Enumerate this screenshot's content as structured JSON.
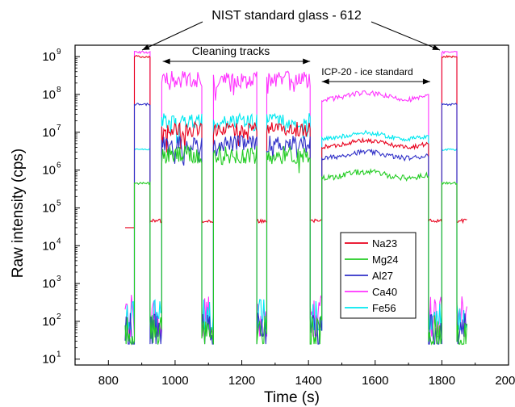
{
  "chart_data": {
    "type": "line",
    "xlabel": "Time (s)",
    "ylabel": "Raw intensity (cps)",
    "xlim": [
      700,
      2000
    ],
    "ylim": [
      7,
      2000000000
    ],
    "yscale": "log",
    "x_ticks": [
      800,
      1000,
      1200,
      1400,
      1600,
      1800,
      2000
    ],
    "x_tick_labels": [
      "800",
      "1000",
      "1200",
      "1400",
      "1600",
      "1800",
      "2000"
    ],
    "y_ticks": [
      10,
      100,
      1000,
      10000,
      100000,
      1000000,
      10000000,
      100000000,
      1000000000
    ],
    "y_tick_exponents": [
      "1",
      "2",
      "3",
      "4",
      "5",
      "6",
      "7",
      "8",
      "9"
    ],
    "y_tick_base": "10",
    "annotations": {
      "nist": "NIST standard glass - 612",
      "cleaning": "Cleaning tracks",
      "icp": "ICP-20 - ice standard"
    },
    "legend_position": "center-right",
    "segments": [
      {
        "start": 850,
        "end": 878,
        "type": "gap"
      },
      {
        "start": 878,
        "end": 925,
        "type": "nist"
      },
      {
        "start": 925,
        "end": 960,
        "type": "gap"
      },
      {
        "start": 960,
        "end": 1080,
        "type": "clean"
      },
      {
        "start": 1080,
        "end": 1115,
        "type": "gap"
      },
      {
        "start": 1115,
        "end": 1245,
        "type": "clean"
      },
      {
        "start": 1245,
        "end": 1275,
        "type": "gap"
      },
      {
        "start": 1275,
        "end": 1405,
        "type": "clean"
      },
      {
        "start": 1405,
        "end": 1440,
        "type": "gap"
      },
      {
        "start": 1440,
        "end": 1760,
        "type": "icp"
      },
      {
        "start": 1760,
        "end": 1800,
        "type": "gap"
      },
      {
        "start": 1800,
        "end": 1845,
        "type": "nist"
      },
      {
        "start": 1845,
        "end": 1875,
        "type": "gap"
      }
    ],
    "series": [
      {
        "name": "Na23",
        "color": "#e8001c",
        "nist": 1000000000,
        "clean": 12000000,
        "icp": 5000000,
        "gap": 45000,
        "gap_floor": 30000,
        "noise": 0.2
      },
      {
        "name": "Mg24",
        "color": "#22cc22",
        "nist": 450000,
        "clean": 2500000,
        "icp": 750000,
        "gap": 60,
        "gap_floor": 25,
        "noise": 0.25
      },
      {
        "name": "Al27",
        "color": "#3030c8",
        "nist": 55000000,
        "clean": 5000000,
        "icp": 2500000,
        "gap": 70,
        "gap_floor": 25,
        "noise": 0.22
      },
      {
        "name": "Ca40",
        "color": "#ff33ff",
        "nist": 1300000000,
        "clean": 250000000,
        "icp": 90000000,
        "gap": 200,
        "gap_floor": 40,
        "noise": 0.22
      },
      {
        "name": "Fe56",
        "color": "#00e8f0",
        "nist": 3500000,
        "clean": 20000000,
        "icp": 8000000,
        "gap": 160,
        "gap_floor": 60,
        "noise": 0.2
      }
    ]
  }
}
